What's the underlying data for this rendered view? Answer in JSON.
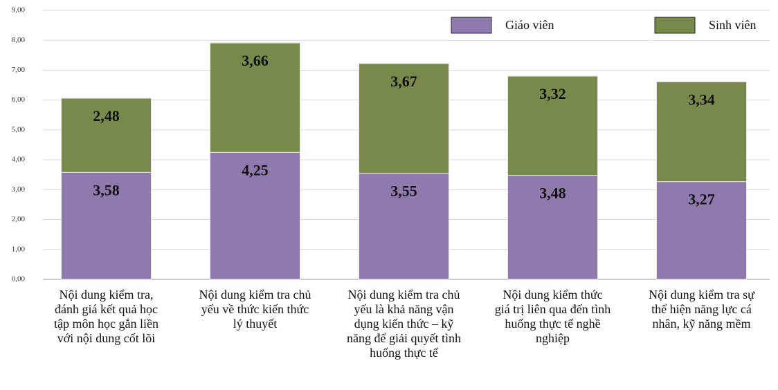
{
  "chart_data": {
    "type": "stacked_bar",
    "categories": [
      "Nội dung kiểm tra, đánh giá kết quả học tập môn học gắn liền với nội dung cốt lõi",
      "Nội dung kiểm tra chủ yếu về thức kiến thức lý thuyết",
      "Nội dung kiểm tra chủ yếu là khả năng vận dụng kiến thức – kỹ năng để giải quyết tình huống thực tế",
      "Nội dung kiểm thức giá trị liên qua đến tình huống thực tế nghề nghiệp",
      "Nội dung kiểm tra sự thể hiện năng lực cá nhân, kỹ năng mềm"
    ],
    "series": [
      {
        "name": "Giáo viên",
        "color": "#8f7aae",
        "values": [
          3.58,
          4.25,
          3.55,
          3.48,
          3.27
        ],
        "value_labels": [
          "3,58",
          "4,25",
          "3,55",
          "3,48",
          "3,27"
        ]
      },
      {
        "name": "Sinh viên",
        "color": "#778a4c",
        "values": [
          2.48,
          3.66,
          3.67,
          3.32,
          3.34
        ],
        "value_labels": [
          "2,48",
          "3,66",
          "3,67",
          "3,32",
          "3,34"
        ]
      }
    ],
    "ylim": [
      0,
      9
    ],
    "yticks": [
      {
        "value": 0,
        "label": "0,00"
      },
      {
        "value": 1,
        "label": "1,00"
      },
      {
        "value": 2,
        "label": "2,00"
      },
      {
        "value": 3,
        "label": "3,00"
      },
      {
        "value": 4,
        "label": "4,00"
      },
      {
        "value": 5,
        "label": "5,00"
      },
      {
        "value": 6,
        "label": "6,00"
      },
      {
        "value": 7,
        "label": "7,00"
      },
      {
        "value": 8,
        "label": "8,00"
      },
      {
        "value": 9,
        "label": "9,00"
      }
    ],
    "grid": true,
    "legend": "top-right"
  }
}
